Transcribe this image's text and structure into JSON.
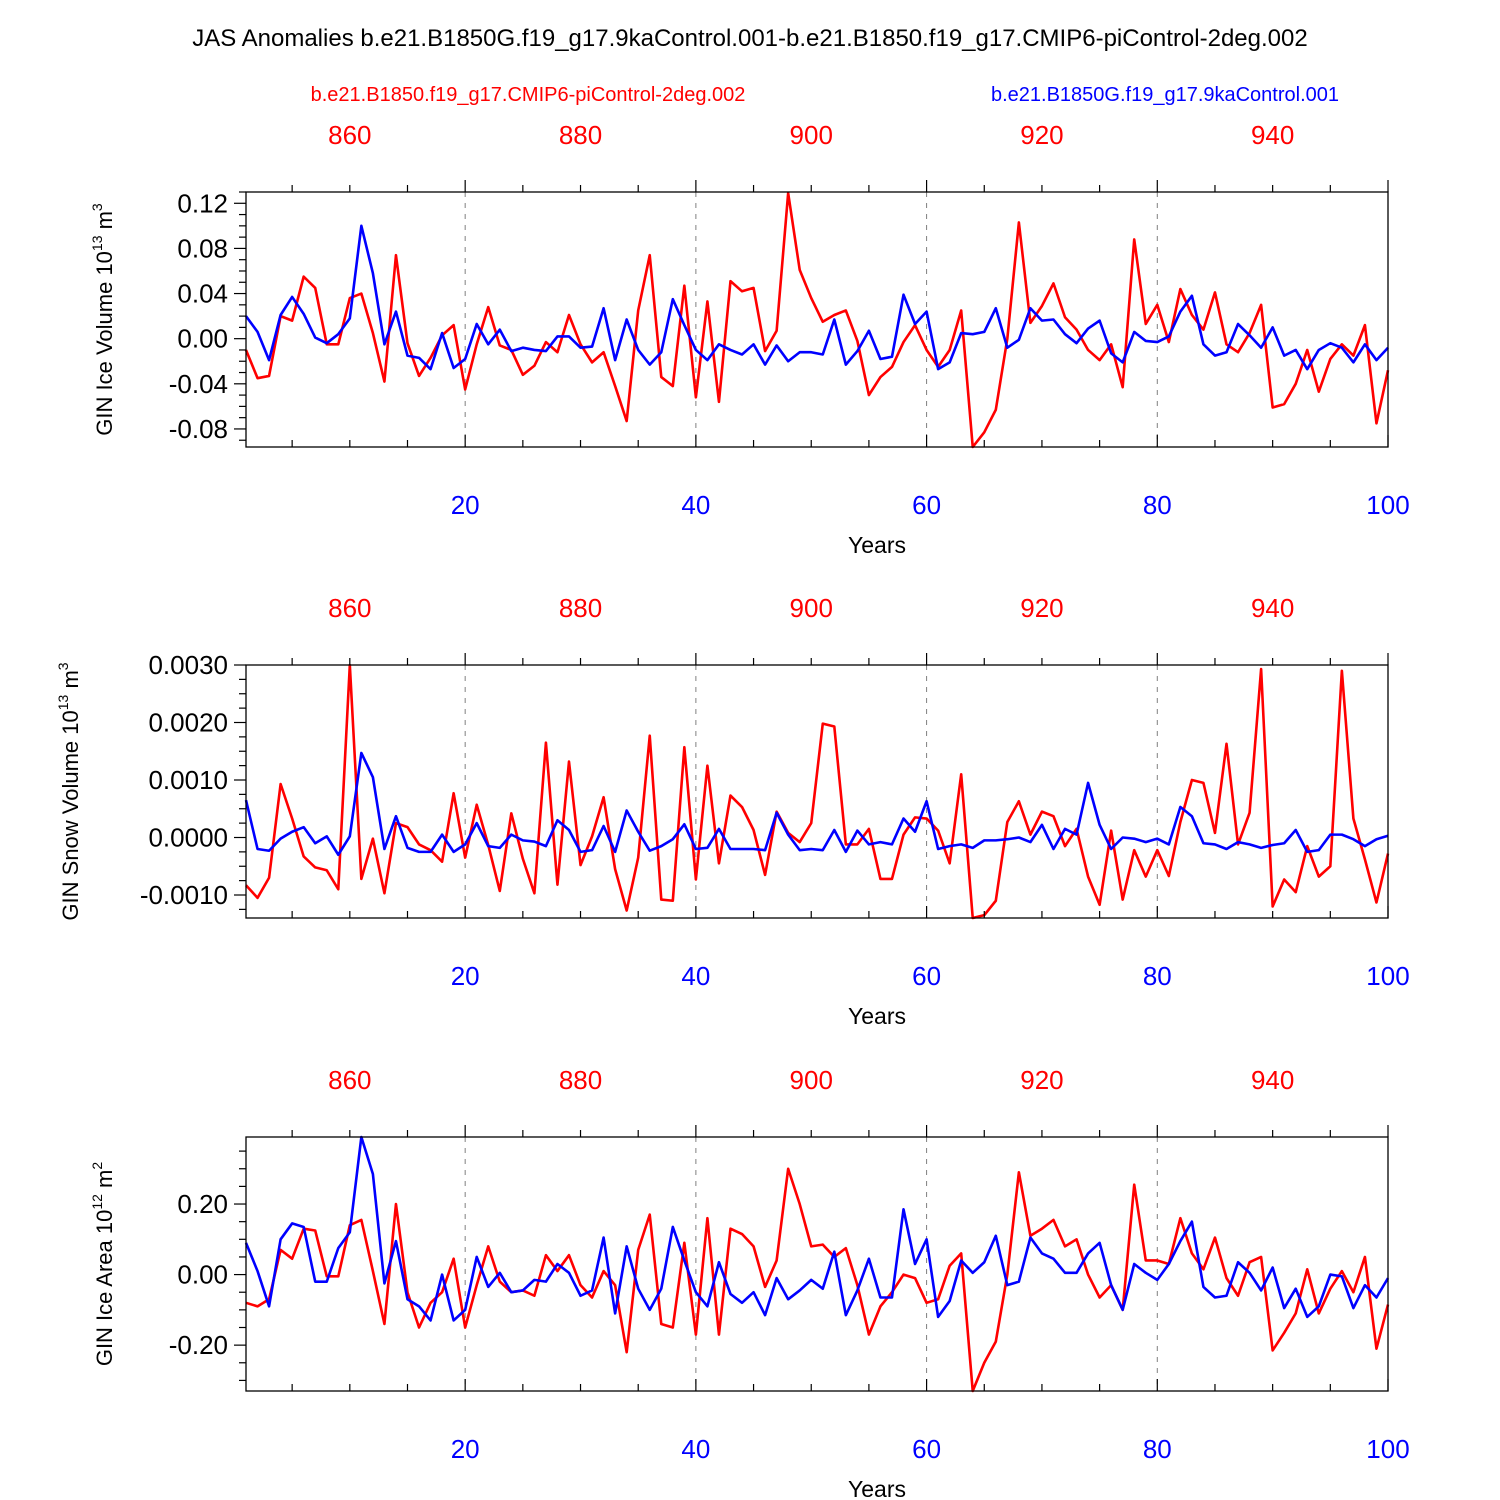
{
  "title": "JAS Anomalies b.e21.B1850G.f19_g17.9kaControl.001-b.e21.B1850.f19_g17.CMIP6-piControl-2deg.002",
  "legend": {
    "red_label": "b.e21.B1850.f19_g17.CMIP6-piControl-2deg.002",
    "blue_label": "b.e21.B1850G.f19_g17.9kaControl.001"
  },
  "colors": {
    "red": "#ff0000",
    "blue": "#0000ff",
    "axis": "#000000",
    "grid": "#808080"
  },
  "chart_data": [
    {
      "type": "line",
      "ylabel": "GIN Ice Volume 10",
      "ylabel_exp": "13",
      "ylabel_unit": " m",
      "ylabel_unit_exp": "3",
      "xlabel": "Years",
      "xlim": [
        1,
        100
      ],
      "ylim": [
        -0.096,
        0.13
      ],
      "yticks": [
        -0.08,
        -0.04,
        0.0,
        0.04,
        0.08,
        0.12
      ],
      "ytick_labels": [
        "-0.08",
        "-0.04",
        "0.00",
        "0.04",
        "0.08",
        "0.12"
      ],
      "bottom_ticks": [
        20,
        40,
        60,
        80,
        100
      ],
      "top_tick_labels": [
        "860",
        "880",
        "900",
        "920",
        "940"
      ],
      "series": [
        {
          "name": "b.e21.B1850.f19_g17.CMIP6-piControl-2deg.002",
          "color": "red",
          "values": [
            -0.01,
            -0.035,
            -0.033,
            0.02,
            0.016,
            0.055,
            0.045,
            -0.005,
            -0.005,
            0.036,
            0.04,
            0.005,
            -0.038,
            0.074,
            -0.004,
            -0.033,
            -0.017,
            0.003,
            0.012,
            -0.045,
            -0.005,
            0.028,
            -0.006,
            -0.01,
            -0.032,
            -0.024,
            -0.003,
            -0.012,
            0.021,
            -0.005,
            -0.021,
            -0.012,
            -0.042,
            -0.073,
            0.025,
            0.074,
            -0.034,
            -0.042,
            0.047,
            -0.052,
            0.033,
            -0.056,
            0.051,
            0.042,
            0.045,
            -0.011,
            0.007,
            0.129,
            0.061,
            0.036,
            0.015,
            0.021,
            0.025,
            -0.002,
            -0.05,
            -0.034,
            -0.025,
            -0.003,
            0.012,
            -0.01,
            -0.025,
            -0.01,
            0.025,
            -0.096,
            -0.083,
            -0.063,
            0.0,
            0.103,
            0.014,
            0.029,
            0.049,
            0.019,
            0.008,
            -0.01,
            -0.019,
            -0.005,
            -0.043,
            0.088,
            0.013,
            0.03,
            -0.003,
            0.044,
            0.021,
            0.008,
            0.041,
            -0.005,
            -0.012,
            0.005,
            0.03,
            -0.061,
            -0.058,
            -0.04,
            -0.01,
            -0.047,
            -0.018,
            -0.005,
            -0.015,
            0.012,
            -0.075,
            -0.028
          ]
        },
        {
          "name": "b.e21.B1850G.f19_g17.9kaControl.001",
          "color": "blue",
          "values": [
            0.02,
            0.006,
            -0.019,
            0.021,
            0.037,
            0.022,
            0.001,
            -0.004,
            0.004,
            0.018,
            0.1,
            0.058,
            -0.005,
            0.024,
            -0.015,
            -0.017,
            -0.027,
            0.005,
            -0.026,
            -0.018,
            0.013,
            -0.005,
            0.008,
            -0.011,
            -0.008,
            -0.01,
            -0.011,
            0.002,
            0.002,
            -0.008,
            -0.007,
            0.027,
            -0.019,
            0.017,
            -0.01,
            -0.023,
            -0.012,
            0.035,
            0.012,
            -0.01,
            -0.019,
            -0.005,
            -0.01,
            -0.014,
            -0.005,
            -0.023,
            -0.006,
            -0.02,
            -0.012,
            -0.012,
            -0.014,
            0.017,
            -0.023,
            -0.011,
            0.007,
            -0.018,
            -0.016,
            0.039,
            0.013,
            0.024,
            -0.027,
            -0.021,
            0.005,
            0.004,
            0.006,
            0.027,
            -0.008,
            -0.001,
            0.027,
            0.016,
            0.017,
            0.004,
            -0.004,
            0.009,
            0.016,
            -0.013,
            -0.021,
            0.006,
            -0.002,
            -0.003,
            0.002,
            0.024,
            0.038,
            -0.005,
            -0.015,
            -0.012,
            0.013,
            0.003,
            -0.008,
            0.01,
            -0.015,
            -0.01,
            -0.027,
            -0.01,
            -0.004,
            -0.008,
            -0.021,
            -0.005,
            -0.019,
            -0.008
          ]
        }
      ]
    },
    {
      "type": "line",
      "ylabel": "GIN Snow Volume 10",
      "ylabel_exp": "13",
      "ylabel_unit": " m",
      "ylabel_unit_exp": "3",
      "xlabel": "Years",
      "xlim": [
        1,
        100
      ],
      "ylim": [
        -0.0014,
        0.003
      ],
      "yticks": [
        -0.001,
        0.0,
        0.001,
        0.002,
        0.003
      ],
      "ytick_labels": [
        "-0.0010",
        "0.0000",
        "0.0010",
        "0.0020",
        "0.0030"
      ],
      "bottom_ticks": [
        20,
        40,
        60,
        80,
        100
      ],
      "top_tick_labels": [
        "860",
        "880",
        "900",
        "920",
        "940"
      ],
      "series": [
        {
          "name": "b.e21.B1850.f19_g17.CMIP6-piControl-2deg.002",
          "color": "red",
          "values": [
            -0.00083,
            -0.00105,
            -0.0007,
            0.00093,
            0.00033,
            -0.00033,
            -0.00052,
            -0.00057,
            -0.0009,
            0.003,
            -0.00072,
            -2e-05,
            -0.00097,
            0.00025,
            0.00018,
            -0.00012,
            -0.00022,
            -0.00042,
            0.00077,
            -0.00035,
            0.00057,
            -0.00013,
            -0.00093,
            0.00042,
            -0.00037,
            -0.00097,
            0.00165,
            -0.00082,
            0.00132,
            -0.00048,
            2e-05,
            0.0007,
            -0.00055,
            -0.00127,
            -0.00035,
            0.00177,
            -0.00108,
            -0.0011,
            0.00157,
            -0.00073,
            0.00125,
            -0.00045,
            0.00073,
            0.00053,
            0.00013,
            -0.00065,
            0.00045,
            8e-05,
            -8e-05,
            0.00025,
            0.00198,
            0.00193,
            -0.00012,
            -0.00012,
            0.00015,
            -0.00072,
            -0.00072,
            5e-05,
            0.00035,
            0.00033,
            0.00012,
            -0.00045,
            0.0011,
            -0.0014,
            -0.00135,
            -0.0011,
            0.00027,
            0.00063,
            5e-05,
            0.00045,
            0.00037,
            -0.00015,
            0.00015,
            -0.00068,
            -0.00117,
            0.00012,
            -0.00108,
            -0.00022,
            -0.00068,
            -0.00022,
            -0.00067,
            0.00027,
            0.001,
            0.00095,
            8e-05,
            0.00163,
            -0.00012,
            0.00043,
            0.00293,
            -0.0012,
            -0.00073,
            -0.00095,
            -0.00015,
            -0.00068,
            -0.0005,
            0.0029,
            0.00033,
            -0.00038,
            -0.00113,
            -0.00028
          ]
        },
        {
          "name": "b.e21.B1850G.f19_g17.9kaControl.001",
          "color": "blue",
          "values": [
            0.00065,
            -0.0002,
            -0.00023,
            -2e-05,
            0.0001,
            0.00018,
            -0.0001,
            2e-05,
            -0.0003,
            2e-05,
            0.00147,
            0.00105,
            -0.0002,
            0.00037,
            -0.00018,
            -0.00025,
            -0.00025,
            5e-05,
            -0.00025,
            -0.00012,
            0.00025,
            -0.00015,
            -0.00018,
            5e-05,
            -5e-05,
            -7e-05,
            -0.00015,
            0.0003,
            0.00013,
            -0.00025,
            -0.00022,
            0.0002,
            -0.00025,
            0.00047,
            0.0001,
            -0.00023,
            -0.00015,
            -3e-05,
            0.00023,
            -0.0002,
            -0.00018,
            0.00015,
            -0.0002,
            -0.0002,
            -0.0002,
            -0.00022,
            0.00043,
            5e-05,
            -0.00022,
            -0.0002,
            -0.00022,
            0.00013,
            -0.00025,
            0.00012,
            -0.00012,
            -8e-05,
            -0.00012,
            0.00033,
            0.0001,
            0.00063,
            -0.0002,
            -0.00015,
            -0.00012,
            -0.00018,
            -5e-05,
            -5e-05,
            -3e-05,
            0.0,
            -8e-05,
            0.00022,
            -0.0002,
            0.00015,
            5e-05,
            0.00095,
            0.00022,
            -0.0002,
            0.0,
            -2e-05,
            -8e-05,
            -2e-05,
            -0.00012,
            0.00053,
            0.00037,
            -0.0001,
            -0.00012,
            -0.0002,
            -8e-05,
            -0.00012,
            -0.00018,
            -0.00013,
            -0.0001,
            0.00013,
            -0.00025,
            -0.00022,
            5e-05,
            5e-05,
            -3e-05,
            -0.00015,
            -3e-05,
            3e-05
          ]
        }
      ]
    },
    {
      "type": "line",
      "ylabel": "GIN Ice Area 10",
      "ylabel_exp": "12",
      "ylabel_unit": " m",
      "ylabel_unit_exp": "2",
      "xlabel": "Years",
      "xlim": [
        1,
        100
      ],
      "ylim": [
        -0.33,
        0.39
      ],
      "yticks": [
        -0.2,
        0.0,
        0.2
      ],
      "ytick_labels": [
        "-0.20",
        "0.00",
        "0.20"
      ],
      "bottom_ticks": [
        20,
        40,
        60,
        80,
        100
      ],
      "top_tick_labels": [
        "860",
        "880",
        "900",
        "920",
        "940"
      ],
      "series": [
        {
          "name": "b.e21.B1850.f19_g17.CMIP6-piControl-2deg.002",
          "color": "red",
          "values": [
            -0.08,
            -0.09,
            -0.07,
            0.07,
            0.045,
            0.13,
            0.125,
            -0.005,
            -0.005,
            0.14,
            0.155,
            0.01,
            -0.14,
            0.2,
            -0.05,
            -0.15,
            -0.08,
            -0.05,
            0.045,
            -0.15,
            -0.03,
            0.08,
            -0.02,
            -0.05,
            -0.045,
            -0.06,
            0.055,
            0.01,
            0.055,
            -0.03,
            -0.065,
            0.01,
            -0.03,
            -0.22,
            0.07,
            0.17,
            -0.14,
            -0.15,
            0.09,
            -0.17,
            0.16,
            -0.17,
            0.13,
            0.115,
            0.08,
            -0.035,
            0.04,
            0.3,
            0.2,
            0.08,
            0.085,
            0.05,
            0.075,
            -0.03,
            -0.17,
            -0.09,
            -0.05,
            0.0,
            -0.01,
            -0.08,
            -0.07,
            0.025,
            0.06,
            -0.33,
            -0.25,
            -0.19,
            0.0,
            0.29,
            0.11,
            0.13,
            0.155,
            0.08,
            0.1,
            0.0,
            -0.065,
            -0.03,
            -0.1,
            0.255,
            0.04,
            0.04,
            0.03,
            0.16,
            0.06,
            0.015,
            0.105,
            -0.01,
            -0.06,
            0.035,
            0.05,
            -0.215,
            -0.165,
            -0.11,
            0.015,
            -0.11,
            -0.04,
            0.01,
            -0.05,
            0.05,
            -0.21,
            -0.085
          ]
        },
        {
          "name": "b.e21.B1850G.f19_g17.9kaControl.001",
          "color": "blue",
          "values": [
            0.09,
            0.01,
            -0.09,
            0.1,
            0.145,
            0.135,
            -0.02,
            -0.02,
            0.075,
            0.12,
            0.39,
            0.285,
            -0.025,
            0.095,
            -0.07,
            -0.09,
            -0.13,
            0.0,
            -0.13,
            -0.1,
            0.05,
            -0.035,
            0.005,
            -0.05,
            -0.045,
            -0.015,
            -0.02,
            0.03,
            0.005,
            -0.06,
            -0.045,
            0.105,
            -0.11,
            0.08,
            -0.04,
            -0.1,
            -0.04,
            0.135,
            0.04,
            -0.05,
            -0.09,
            0.035,
            -0.055,
            -0.08,
            -0.05,
            -0.115,
            -0.01,
            -0.07,
            -0.045,
            -0.015,
            -0.04,
            0.065,
            -0.115,
            -0.045,
            0.045,
            -0.065,
            -0.065,
            0.185,
            0.03,
            0.1,
            -0.12,
            -0.075,
            0.04,
            0.005,
            0.035,
            0.11,
            -0.03,
            -0.02,
            0.105,
            0.06,
            0.045,
            0.005,
            0.005,
            0.06,
            0.09,
            -0.03,
            -0.1,
            0.03,
            0.005,
            -0.015,
            0.03,
            0.095,
            0.15,
            -0.035,
            -0.065,
            -0.06,
            0.035,
            0.005,
            -0.045,
            0.02,
            -0.095,
            -0.04,
            -0.12,
            -0.09,
            0.0,
            -0.005,
            -0.095,
            -0.03,
            -0.065,
            -0.01
          ]
        }
      ]
    }
  ]
}
